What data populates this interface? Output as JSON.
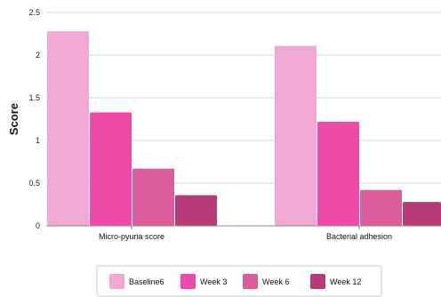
{
  "chart_data": {
    "type": "bar",
    "categories": [
      "Micro-pyuria score",
      "Bacterial adhesion"
    ],
    "series": [
      {
        "name": "Baseline6",
        "values": [
          2.28,
          2.11
        ],
        "color": "#f0a8d4"
      },
      {
        "name": "Week 3",
        "values": [
          1.33,
          1.22
        ],
        "color": "#f04aa8"
      },
      {
        "name": "Week 6",
        "values": [
          0.67,
          0.42
        ],
        "color": "#db5d9c"
      },
      {
        "name": "Week 12",
        "values": [
          0.36,
          0.28
        ],
        "color": "#b83b79"
      }
    ],
    "title": "",
    "xlabel": "",
    "ylabel": "Score",
    "ylim": [
      0,
      2.5
    ],
    "yticks": [
      "0",
      "0.5",
      "1",
      "1.5",
      "2",
      "2.5"
    ],
    "grid": true,
    "legend_position": "bottom"
  }
}
